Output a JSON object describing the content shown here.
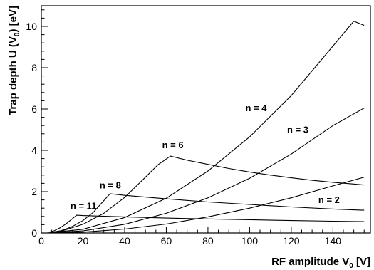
{
  "chart_data": {
    "type": "line",
    "xlabel_main": "RF amplitude V",
    "xlabel_sub": "0",
    "xlabel_unit": " [V]",
    "ylabel_main": "Trap depth U (V",
    "ylabel_sub": "0",
    "ylabel_unit": ") [eV]",
    "xlim": [
      0,
      158
    ],
    "ylim": [
      0,
      11
    ],
    "x_ticks": [
      0,
      20,
      40,
      60,
      80,
      100,
      120,
      140
    ],
    "y_ticks": [
      0,
      2,
      4,
      6,
      8,
      10
    ],
    "grid": false,
    "series": [
      {
        "name": "n = 11",
        "label_pos": [
          14,
          1.15
        ],
        "points": [
          [
            3,
            0.03
          ],
          [
            6,
            0.1
          ],
          [
            9,
            0.25
          ],
          [
            12,
            0.45
          ],
          [
            15,
            0.7
          ],
          [
            17,
            0.86
          ],
          [
            20,
            0.84
          ],
          [
            40,
            0.78
          ],
          [
            60,
            0.72
          ],
          [
            80,
            0.68
          ],
          [
            100,
            0.64
          ],
          [
            120,
            0.6
          ],
          [
            140,
            0.57
          ],
          [
            155,
            0.55
          ]
        ]
      },
      {
        "name": "n = 8",
        "label_pos": [
          28,
          2.15
        ],
        "points": [
          [
            4,
            0.02
          ],
          [
            10,
            0.12
          ],
          [
            15,
            0.32
          ],
          [
            20,
            0.6
          ],
          [
            25,
            1.0
          ],
          [
            29,
            1.45
          ],
          [
            33,
            1.9
          ],
          [
            40,
            1.82
          ],
          [
            60,
            1.65
          ],
          [
            80,
            1.5
          ],
          [
            100,
            1.38
          ],
          [
            120,
            1.26
          ],
          [
            140,
            1.16
          ],
          [
            155,
            1.1
          ]
        ]
      },
      {
        "name": "n = 6",
        "label_pos": [
          58,
          4.1
        ],
        "points": [
          [
            4,
            0.02
          ],
          [
            10,
            0.1
          ],
          [
            20,
            0.42
          ],
          [
            30,
            0.95
          ],
          [
            40,
            1.72
          ],
          [
            50,
            2.7
          ],
          [
            56,
            3.3
          ],
          [
            62,
            3.72
          ],
          [
            70,
            3.52
          ],
          [
            80,
            3.32
          ],
          [
            90,
            3.12
          ],
          [
            100,
            2.95
          ],
          [
            110,
            2.8
          ],
          [
            120,
            2.67
          ],
          [
            130,
            2.55
          ],
          [
            140,
            2.45
          ],
          [
            150,
            2.37
          ],
          [
            155,
            2.32
          ]
        ]
      },
      {
        "name": "n = 4",
        "label_pos": [
          98,
          5.9
        ],
        "points": [
          [
            4,
            0.01
          ],
          [
            20,
            0.18
          ],
          [
            40,
            0.75
          ],
          [
            60,
            1.68
          ],
          [
            80,
            3.0
          ],
          [
            100,
            4.65
          ],
          [
            120,
            6.65
          ],
          [
            140,
            9.05
          ],
          [
            150,
            10.25
          ],
          [
            155,
            10.05
          ]
        ]
      },
      {
        "name": "n = 3",
        "label_pos": [
          118,
          4.85
        ],
        "points": [
          [
            4,
            0.01
          ],
          [
            20,
            0.1
          ],
          [
            40,
            0.42
          ],
          [
            60,
            0.95
          ],
          [
            80,
            1.7
          ],
          [
            100,
            2.65
          ],
          [
            120,
            3.82
          ],
          [
            140,
            5.2
          ],
          [
            155,
            6.05
          ]
        ]
      },
      {
        "name": "n = 2",
        "label_pos": [
          133,
          1.45
        ],
        "points": [
          [
            4,
            0.005
          ],
          [
            20,
            0.04
          ],
          [
            40,
            0.19
          ],
          [
            60,
            0.43
          ],
          [
            80,
            0.78
          ],
          [
            100,
            1.2
          ],
          [
            120,
            1.7
          ],
          [
            140,
            2.28
          ],
          [
            155,
            2.7
          ]
        ]
      }
    ]
  }
}
